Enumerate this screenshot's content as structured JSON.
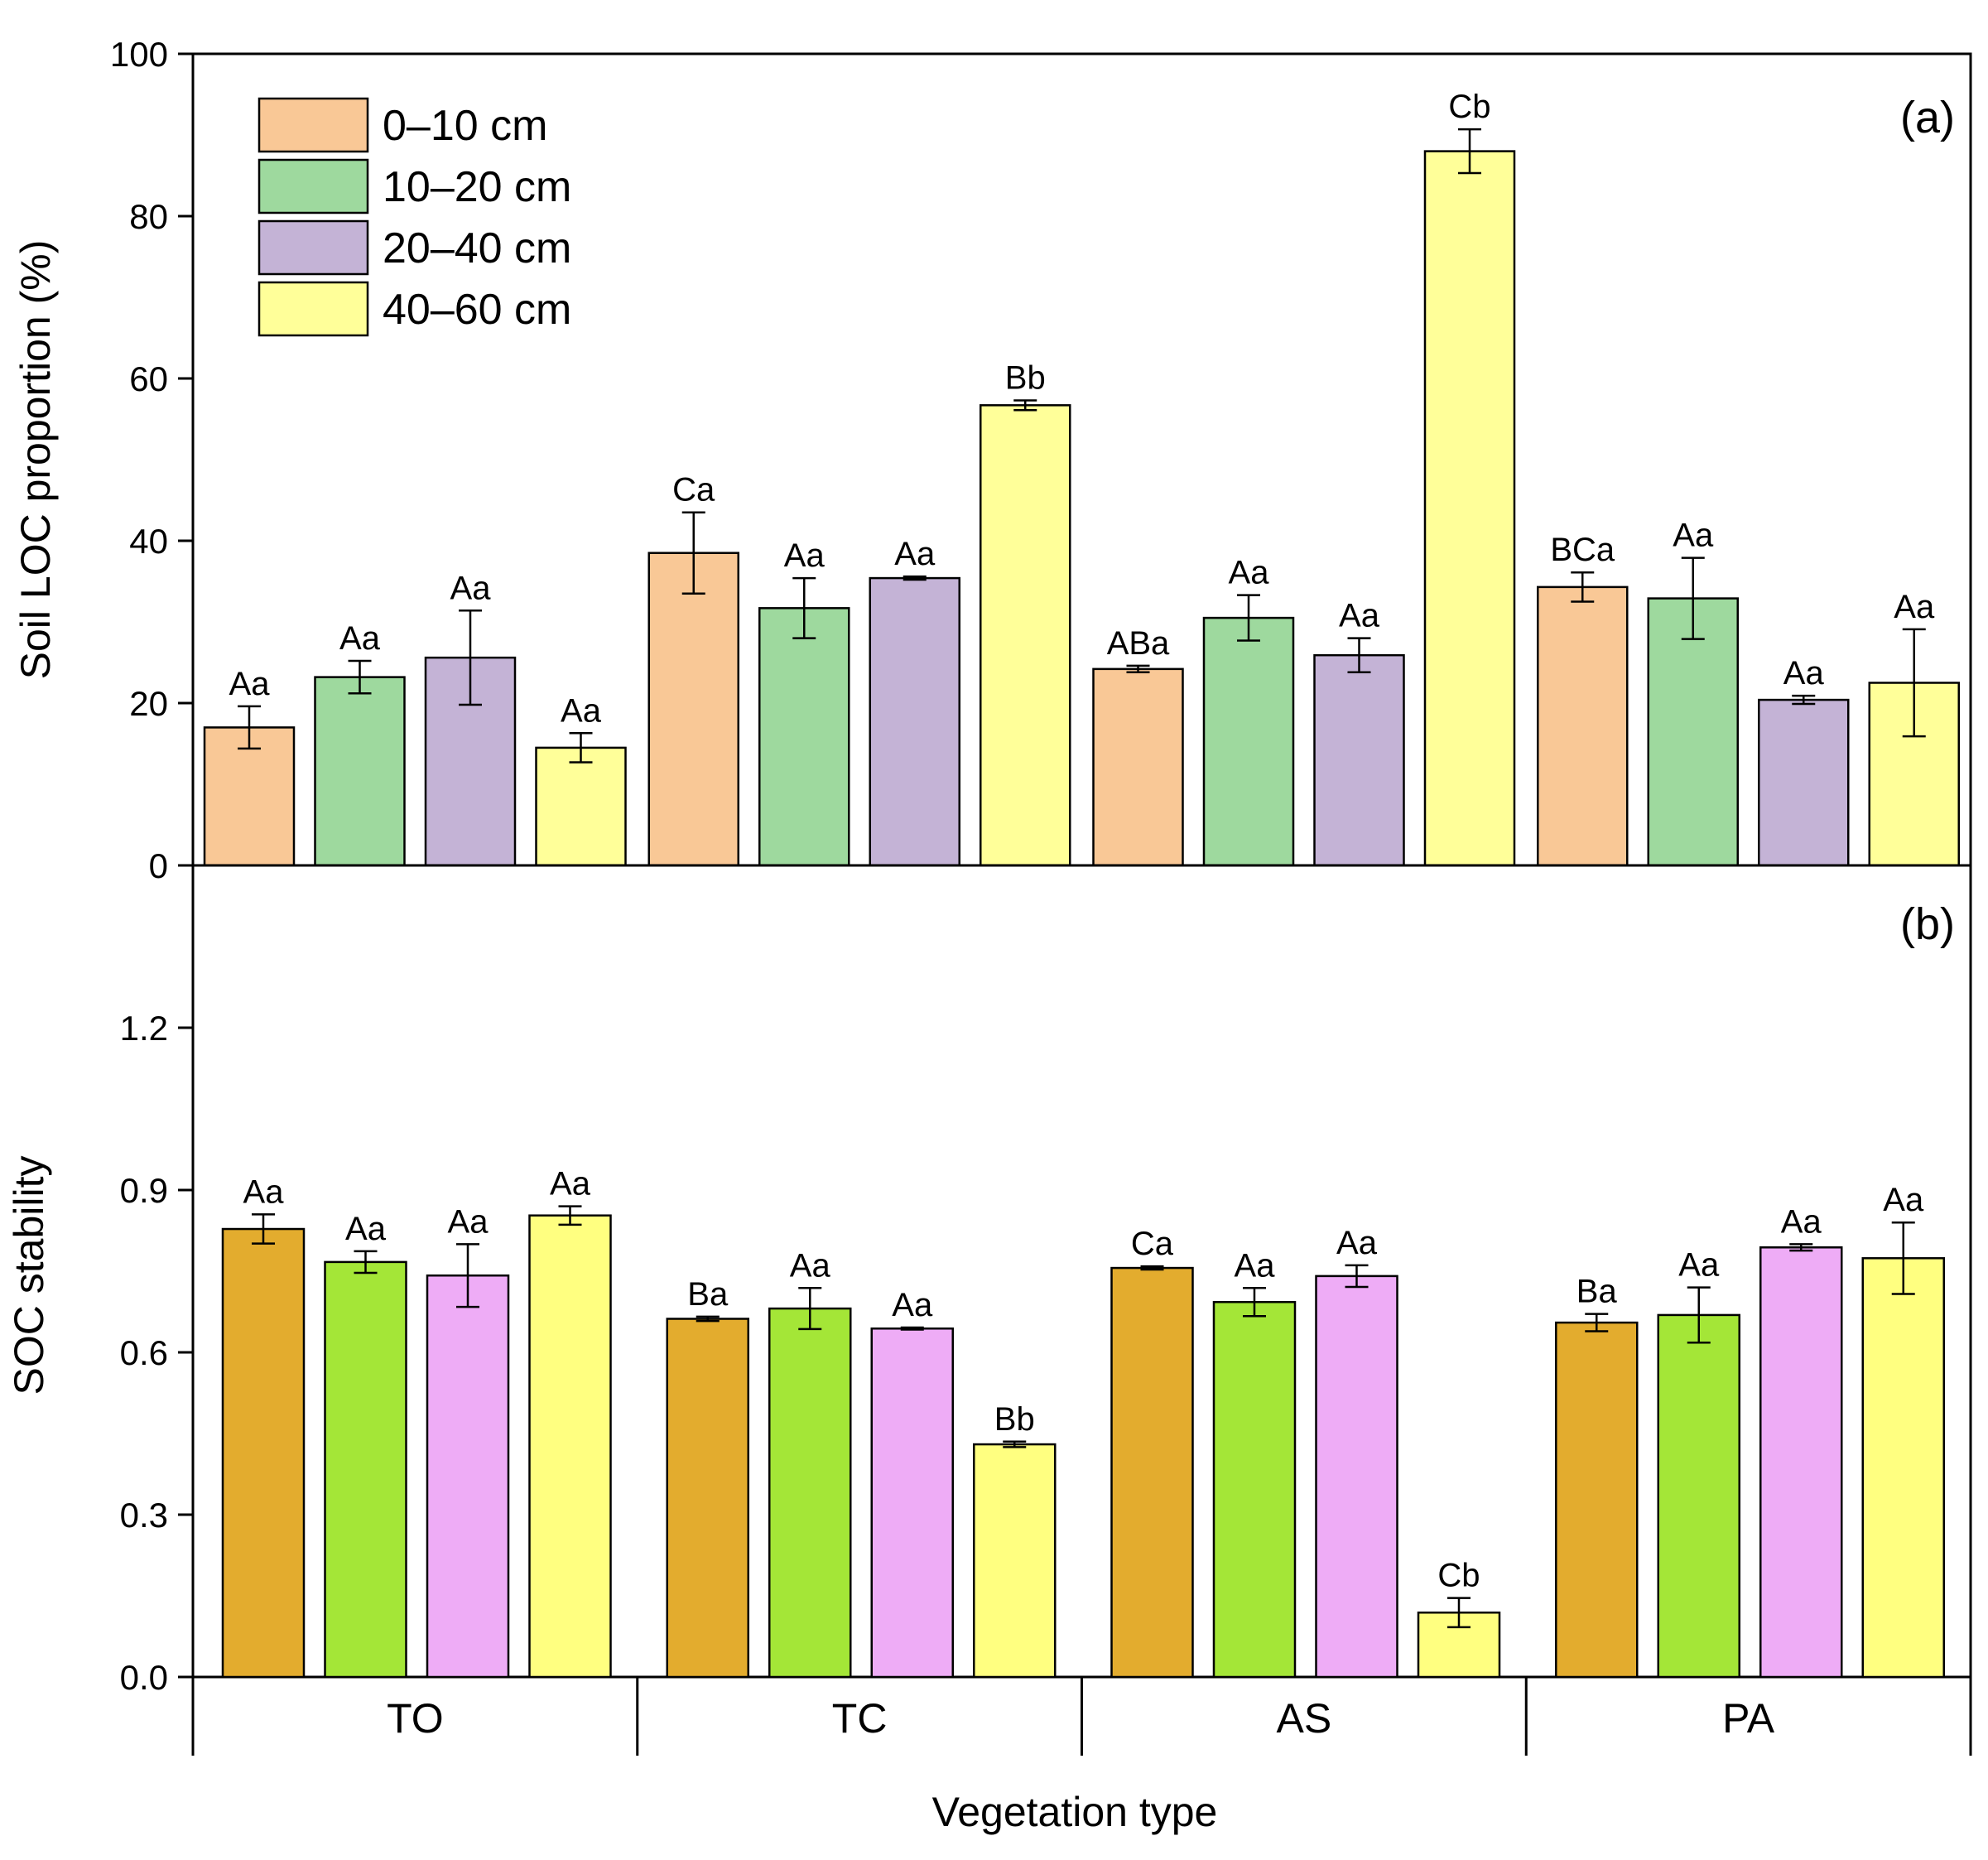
{
  "figure": {
    "xlabel": "Vegetation type",
    "groups": [
      "TO",
      "TC",
      "AS",
      "PA"
    ]
  },
  "legend": {
    "entries": [
      {
        "label": "0–10 cm",
        "color": "#f9c896"
      },
      {
        "label": "10–20 cm",
        "color": "#9ed99e"
      },
      {
        "label": "20–40 cm",
        "color": "#c4b3d6"
      },
      {
        "label": "40–60 cm",
        "color": "#ffff99"
      }
    ]
  },
  "chart_data": [
    {
      "type": "bar",
      "panel": "(a)",
      "ylabel": "Soil LOC proportion (%)",
      "ylim": [
        0,
        100
      ],
      "yticks": [
        "0",
        "20",
        "40",
        "60",
        "80",
        "100"
      ],
      "categories": [
        "TO",
        "TC",
        "AS",
        "PA"
      ],
      "series": [
        {
          "name": "0–10 cm",
          "color": "#f9c896",
          "values": [
            17.0,
            38.5,
            24.2,
            34.3
          ],
          "errors": [
            2.6,
            5.0,
            0.4,
            1.8
          ],
          "labels": [
            "Aa",
            "Ca",
            "ABa",
            "BCa"
          ]
        },
        {
          "name": "10–20 cm",
          "color": "#9ed99e",
          "values": [
            23.2,
            31.7,
            30.5,
            32.9
          ],
          "errors": [
            2.0,
            3.7,
            2.8,
            5.0
          ],
          "labels": [
            "Aa",
            "Aa",
            "Aa",
            "Aa"
          ]
        },
        {
          "name": "20–40 cm",
          "color": "#c4b3d6",
          "values": [
            25.6,
            35.4,
            25.9,
            20.4
          ],
          "errors": [
            5.8,
            0.2,
            2.1,
            0.5
          ],
          "labels": [
            "Aa",
            "Aa",
            "Aa",
            "Aa"
          ]
        },
        {
          "name": "40–60 cm",
          "color": "#ffff99",
          "values": [
            14.5,
            56.7,
            88.0,
            22.5
          ],
          "errors": [
            1.8,
            0.6,
            2.7,
            6.6
          ],
          "labels": [
            "Aa",
            "Bb",
            "Cb",
            "Aa"
          ]
        }
      ]
    },
    {
      "type": "bar",
      "panel": "(b)",
      "ylabel": "SOC stability",
      "ylim": [
        0,
        1.5
      ],
      "yticks": [
        "0.0",
        "0.3",
        "0.6",
        "0.9",
        "1.2"
      ],
      "categories": [
        "TO",
        "TC",
        "AS",
        "PA"
      ],
      "series": [
        {
          "name": "0–10 cm",
          "color": "#e3ac2e",
          "values": [
            0.828,
            0.662,
            0.756,
            0.655
          ],
          "errors": [
            0.027,
            0.004,
            0.003,
            0.016
          ],
          "labels": [
            "Aa",
            "Ba",
            "Ca",
            "Ba"
          ]
        },
        {
          "name": "10–20 cm",
          "color": "#a4e637",
          "values": [
            0.767,
            0.681,
            0.693,
            0.669
          ],
          "errors": [
            0.02,
            0.038,
            0.026,
            0.051
          ],
          "labels": [
            "Aa",
            "Aa",
            "Aa",
            "Aa"
          ]
        },
        {
          "name": "20–40 cm",
          "color": "#eeacf6",
          "values": [
            0.742,
            0.644,
            0.741,
            0.794
          ],
          "errors": [
            0.058,
            0.002,
            0.02,
            0.006
          ],
          "labels": [
            "Aa",
            "Aa",
            "Aa",
            "Aa"
          ]
        },
        {
          "name": "40–60 cm",
          "color": "#ffff80",
          "values": [
            0.853,
            0.43,
            0.119,
            0.774
          ],
          "errors": [
            0.017,
            0.005,
            0.027,
            0.066
          ],
          "labels": [
            "Aa",
            "Bb",
            "Cb",
            "Aa"
          ]
        }
      ]
    }
  ]
}
